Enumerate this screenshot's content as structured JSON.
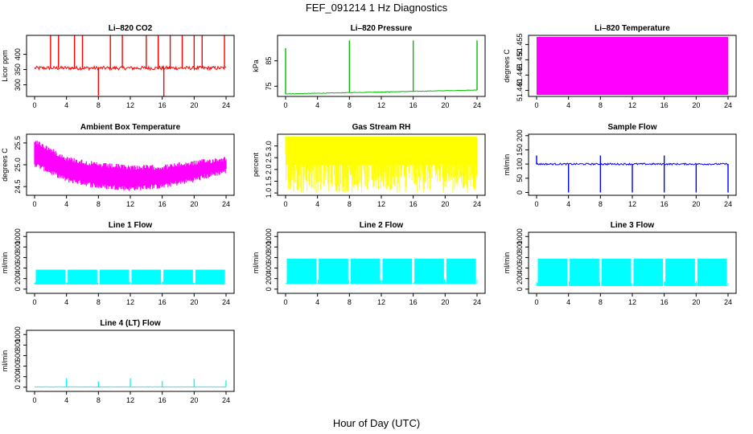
{
  "figure": {
    "title": "FEF_091214  1 Hz Diagnostics",
    "xlabel": "Hour of Day (UTC)"
  },
  "chart_data": [
    {
      "type": "line",
      "title": "Li–820 CO2",
      "ylabel": "Licor ppm",
      "color": "#ff0000",
      "xlim": [
        0,
        24
      ],
      "xticks": [
        0,
        4,
        8,
        12,
        16,
        20,
        24
      ],
      "ylim": [
        262,
        462
      ],
      "yticks": [
        300,
        350,
        400
      ],
      "baseline": 355,
      "noise": 6,
      "spikes": [
        [
          2,
          465
        ],
        [
          3,
          465
        ],
        [
          5,
          465
        ],
        [
          6,
          465
        ],
        [
          8,
          265
        ],
        [
          9.5,
          462
        ],
        [
          11,
          462
        ],
        [
          14,
          462
        ],
        [
          15.5,
          462
        ],
        [
          16.2,
          262
        ],
        [
          17,
          462
        ],
        [
          18.5,
          462
        ],
        [
          20,
          462
        ],
        [
          21,
          462
        ],
        [
          23.8,
          462
        ]
      ]
    },
    {
      "type": "line",
      "title": "Li–820 Pressure",
      "ylabel": "kPa",
      "color": "#00c000",
      "xlim": [
        0,
        24
      ],
      "xticks": [
        0,
        4,
        8,
        12,
        16,
        20,
        24
      ],
      "ylim": [
        71,
        95
      ],
      "yticks": [
        75,
        85
      ],
      "baseline_start": 72,
      "baseline_end": 73.5,
      "noise": 0.1,
      "spikes": [
        [
          0,
          90
        ],
        [
          8,
          93
        ],
        [
          16,
          93
        ],
        [
          24,
          93
        ]
      ]
    },
    {
      "type": "area",
      "title": "Li–820 Temperature",
      "ylabel": "degrees C",
      "color": "#ff00ff",
      "xlim": [
        0,
        24
      ],
      "xticks": [
        0,
        4,
        8,
        12,
        16,
        20,
        24
      ],
      "ylim": [
        51.438,
        51.458
      ],
      "yticks": [
        51.44,
        51.445,
        51.45,
        51.455
      ],
      "ytick_labels": [
        "51.440",
        "51.445",
        "51.450",
        "51.455"
      ],
      "band": [
        51.4385,
        51.4575
      ]
    },
    {
      "type": "line",
      "title": "Ambient Box Temperature",
      "ylabel": "degrees C",
      "color": "#ff00ff",
      "xlim": [
        0,
        24
      ],
      "xticks": [
        0,
        4,
        8,
        12,
        16,
        20,
        24
      ],
      "ylim": [
        24.3,
        25.7
      ],
      "yticks": [
        24.5,
        25.0,
        25.5
      ],
      "ytick_labels": [
        "24.5",
        "25.0",
        "25.5"
      ],
      "band_upper": [
        [
          0,
          25.6
        ],
        [
          4,
          25.2
        ],
        [
          8,
          25.05
        ],
        [
          12,
          25.0
        ],
        [
          16,
          25.0
        ],
        [
          20,
          25.1
        ],
        [
          24,
          25.2
        ]
      ],
      "band_lower": [
        [
          0,
          24.95
        ],
        [
          4,
          24.6
        ],
        [
          8,
          24.45
        ],
        [
          12,
          24.4
        ],
        [
          16,
          24.45
        ],
        [
          20,
          24.6
        ],
        [
          24,
          24.8
        ]
      ]
    },
    {
      "type": "area",
      "title": "Gas Stream RH",
      "ylabel": "percent",
      "color": "#ffff00",
      "xlim": [
        0,
        24
      ],
      "xticks": [
        0,
        4,
        8,
        12,
        16,
        20,
        24
      ],
      "ylim": [
        0.9,
        3.5
      ],
      "yticks": [
        1.0,
        1.5,
        2.0,
        2.5,
        3.0
      ],
      "ytick_labels": [
        "1.0",
        "1.5",
        "2.0",
        "2.5",
        "3.0"
      ],
      "band": [
        1.0,
        3.4
      ]
    },
    {
      "type": "line",
      "title": "Sample Flow",
      "ylabel": "ml/min",
      "color": "#0000ff",
      "xlim": [
        0,
        24
      ],
      "xticks": [
        0,
        4,
        8,
        12,
        16,
        20,
        24
      ],
      "ylim": [
        -10,
        205
      ],
      "yticks": [
        0,
        50,
        100,
        150,
        200
      ],
      "baseline": 100,
      "noise": 3,
      "spikes": [
        [
          0,
          130
        ],
        [
          4,
          0
        ],
        [
          8,
          0
        ],
        [
          8,
          130
        ],
        [
          12,
          0
        ],
        [
          16,
          130
        ],
        [
          16,
          0
        ],
        [
          20,
          0
        ],
        [
          24,
          0
        ]
      ]
    },
    {
      "type": "area",
      "title": "Line 1 Flow",
      "ylabel": "ml/min",
      "color": "#00ffff",
      "xlim": [
        0,
        24
      ],
      "xticks": [
        0,
        4,
        8,
        12,
        16,
        20,
        24
      ],
      "ylim": [
        -80,
        1080
      ],
      "yticks": [
        0,
        200,
        400,
        600,
        800,
        1000
      ],
      "band": [
        90,
        370
      ],
      "gaps": [
        4,
        8,
        12,
        16,
        20,
        24
      ]
    },
    {
      "type": "area",
      "title": "Line 2 Flow",
      "ylabel": "ml/min",
      "color": "#00ffff",
      "xlim": [
        0,
        24
      ],
      "xticks": [
        0,
        4,
        8,
        12,
        16,
        20,
        24
      ],
      "ylim": [
        -80,
        1080
      ],
      "yticks": [
        0,
        200,
        400,
        600,
        800,
        1000
      ],
      "band": [
        100,
        580
      ],
      "gaps": [
        4,
        8,
        12,
        16,
        20,
        24
      ]
    },
    {
      "type": "area",
      "title": "Line 3 Flow",
      "ylabel": "ml/min",
      "color": "#00ffff",
      "xlim": [
        0,
        24
      ],
      "xticks": [
        0,
        4,
        8,
        12,
        16,
        20,
        24
      ],
      "ylim": [
        -80,
        1080
      ],
      "yticks": [
        0,
        200,
        400,
        600,
        800,
        1000
      ],
      "band": [
        60,
        580
      ],
      "gaps": [
        4,
        8,
        12,
        16,
        20,
        24
      ]
    },
    {
      "type": "line",
      "title": "Line 4 (LT) Flow",
      "ylabel": "ml/min",
      "color": "#00ffff",
      "xlim": [
        0,
        24
      ],
      "xticks": [
        0,
        4,
        8,
        12,
        16,
        20,
        24
      ],
      "ylim": [
        -80,
        1080
      ],
      "yticks": [
        0,
        200,
        400,
        600,
        800,
        1000
      ],
      "baseline": 5,
      "noise": 4,
      "spikes": [
        [
          4,
          170
        ],
        [
          8,
          110
        ],
        [
          12,
          170
        ],
        [
          16,
          120
        ],
        [
          20,
          160
        ],
        [
          24,
          130
        ]
      ]
    }
  ]
}
